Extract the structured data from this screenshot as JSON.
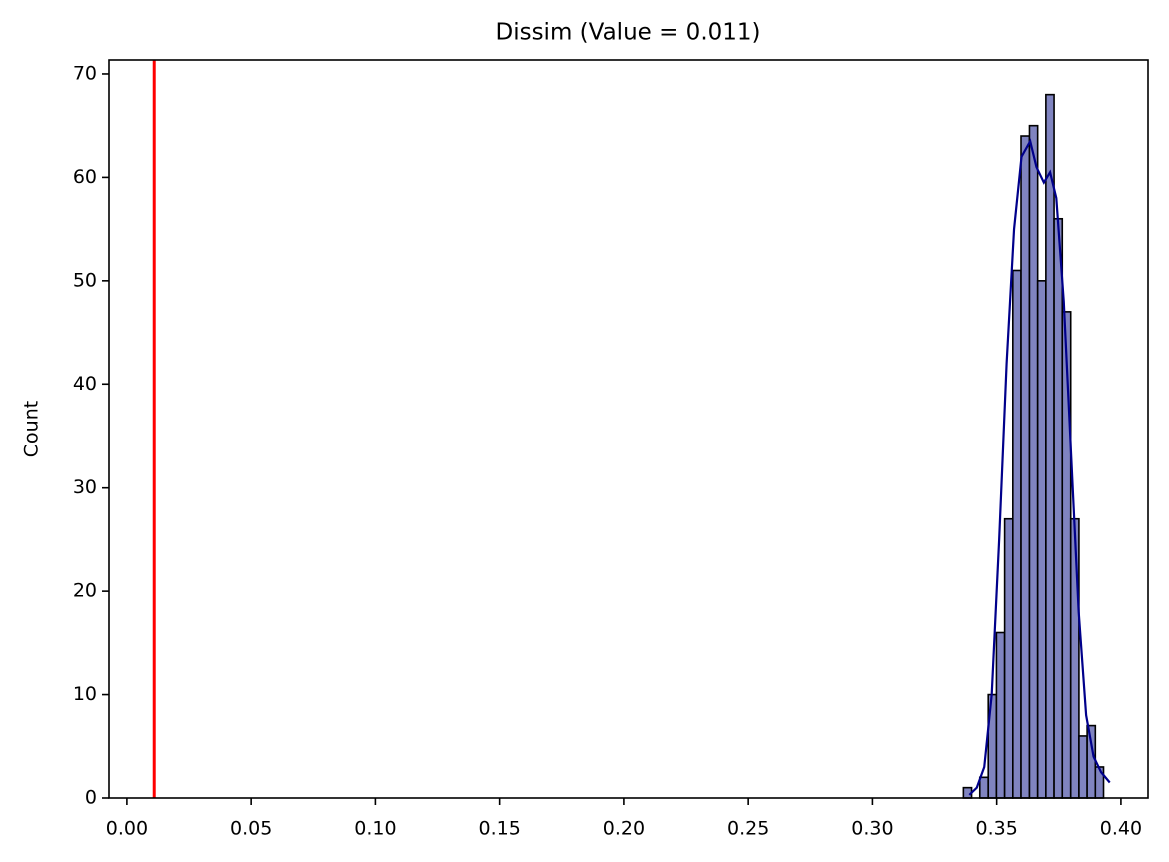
{
  "chart_data": {
    "type": "histogram",
    "title": "Dissim (Value = 0.011)",
    "ylabel": "Count",
    "bins": [
      0.3366,
      0.3399,
      0.3432,
      0.3466,
      0.3499,
      0.3532,
      0.3565,
      0.3598,
      0.3632,
      0.3665,
      0.3698,
      0.3731,
      0.3764,
      0.3798,
      0.3831,
      0.3864,
      0.3897,
      0.393
    ],
    "counts": [
      1,
      0,
      2,
      10,
      16,
      27,
      51,
      64,
      65,
      50,
      68,
      56,
      47,
      27,
      6,
      7,
      3
    ],
    "color": "#8084c0",
    "edgecolor": "#000000",
    "kde": {
      "color": "#00008b",
      "x": [
        0.339,
        0.342,
        0.345,
        0.348,
        0.351,
        0.354,
        0.357,
        0.36,
        0.3635,
        0.366,
        0.369,
        0.3715,
        0.374,
        0.377,
        0.38,
        0.383,
        0.386,
        0.389,
        0.392,
        0.3955
      ],
      "values": [
        0.3,
        1,
        3,
        10,
        25,
        42,
        55,
        62,
        63.5,
        61,
        59.5,
        60.5,
        58,
        48,
        33,
        18,
        8,
        4,
        2.5,
        1.5
      ]
    },
    "vline": {
      "x": 0.011,
      "color": "#ff0000"
    },
    "xlim": [
      -0.0072,
      0.4109
    ],
    "ylim": [
      0,
      71.35
    ],
    "xticks": [
      {
        "value": 0,
        "label": "0.00"
      },
      0.05,
      {
        "value": 0.1,
        "label": "0.10"
      },
      0.15,
      {
        "value": 0.2,
        "label": "0.20"
      },
      0.25,
      {
        "value": 0.3,
        "label": "0.30"
      },
      0.35,
      {
        "value": 0.4,
        "label": "0.40"
      }
    ],
    "yticks": [
      0,
      10,
      20,
      30,
      40,
      50,
      60,
      70
    ]
  }
}
